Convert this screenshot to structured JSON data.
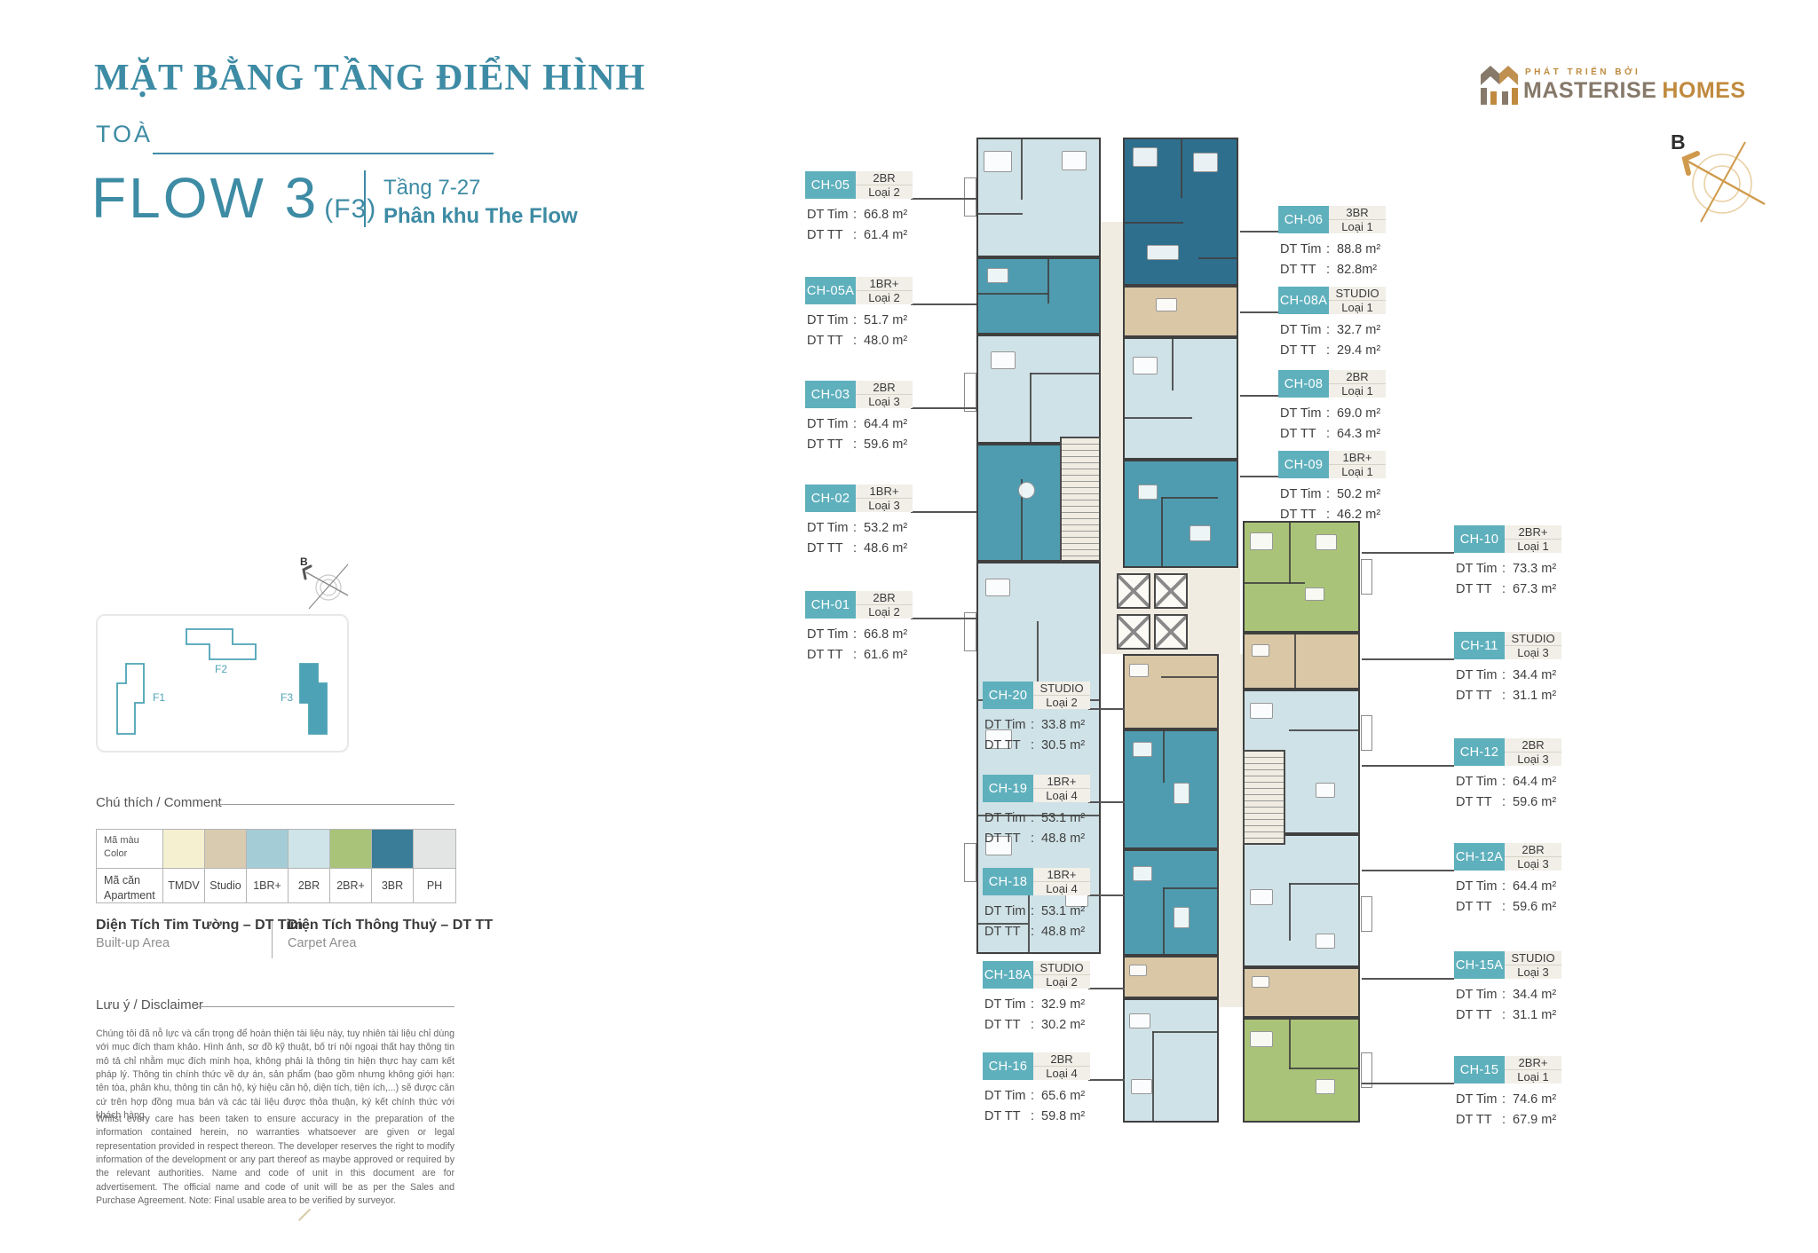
{
  "header": {
    "title": "MẶT BẰNG TẦNG ĐIỂN HÌNH",
    "tower_label": "TOÀ",
    "tower_name": "FLOW 3",
    "tower_code": "(F3)",
    "floor_range": "Tầng 7-27",
    "zone": "Phân khu The Flow"
  },
  "logo": {
    "tagline": "PHÁT TRIỂN BỞI",
    "brand_primary": "MASTERISE",
    "brand_secondary": "HOMES"
  },
  "compass": {
    "north_label": "B"
  },
  "minimap": {
    "buildings": [
      {
        "label": "F1",
        "highlighted": false
      },
      {
        "label": "F2",
        "highlighted": false
      },
      {
        "label": "F3",
        "highlighted": true
      }
    ]
  },
  "legend": {
    "heading": "Chú thích / Comment",
    "rows": {
      "color_vn": "Mã màu",
      "color_en": "Color",
      "apt_vn": "Mã căn",
      "apt_en": "Apartment"
    },
    "types": [
      {
        "code": "TMDV",
        "color": "#f5f0d0"
      },
      {
        "code": "Studio",
        "color": "#d9cbb0"
      },
      {
        "code": "1BR+",
        "color": "#a4ccd7"
      },
      {
        "code": "2BR",
        "color": "#cfe4e8"
      },
      {
        "code": "2BR+",
        "color": "#a9c478"
      },
      {
        "code": "3BR",
        "color": "#3a7d99"
      },
      {
        "code": "PH",
        "color": "#e3e5e5"
      }
    ],
    "area_terms": [
      {
        "vn": "Diện Tích Tim Tường – DT Tim",
        "en": "Built-up Area"
      },
      {
        "vn": "Diện Tích Thông Thuỷ – DT TT",
        "en": "Carpet Area"
      }
    ]
  },
  "disclaimer": {
    "heading": "Lưu ý / Disclaimer",
    "vn": "Chúng tôi đã nỗ lực và cẩn trọng để hoàn thiện tài liệu này, tuy nhiên tài liệu chỉ dùng với mục đích tham khảo. Hình ảnh, sơ đồ kỹ thuật, bố trí nội ngoại thất hay thông tin mô tả chỉ nhằm mục đích minh họa, không phải là thông tin hiện thực hay cam kết pháp lý. Thông tin chính thức về dự án, sản phẩm (bao gồm nhưng không giới hạn: tên tòa, phân khu, thông tin căn hộ, ký hiệu căn hộ, diện tích, tiện ích,...) sẽ được căn cứ trên hợp đồng mua bán và các tài liệu được thỏa thuận, ký kết chính thức với khách hàng.",
    "en": "Whilst every care has been taken to ensure accuracy in the preparation of the information contained herein, no warranties whatsoever are given or legal representation provided in respect thereon. The developer reserves the right to modify information of the development or any part thereof as maybe approved or required by the relevant authorities. Name and code of unit in this document are for advertisement. The official name and code of unit will be as per the Sales and Purchase Agreement. Note: Final usable area to be verified by surveyor."
  },
  "labels": {
    "dt_tim": "DT Tim",
    "dt_tt": "DT TT",
    "colon": ":"
  },
  "units": [
    {
      "id": "CH-05",
      "type": "2BR",
      "variant": "Loại 2",
      "dt_tim": "66.8 m²",
      "dt_tt": "61.4 m²"
    },
    {
      "id": "CH-05A",
      "type": "1BR+",
      "variant": "Loại 2",
      "dt_tim": "51.7 m²",
      "dt_tt": "48.0 m²"
    },
    {
      "id": "CH-03",
      "type": "2BR",
      "variant": "Loại 3",
      "dt_tim": "64.4 m²",
      "dt_tt": "59.6 m²"
    },
    {
      "id": "CH-02",
      "type": "1BR+",
      "variant": "Loại 3",
      "dt_tim": "53.2 m²",
      "dt_tt": "48.6 m²"
    },
    {
      "id": "CH-01",
      "type": "2BR",
      "variant": "Loại 2",
      "dt_tim": "66.8 m²",
      "dt_tt": "61.6 m²"
    },
    {
      "id": "CH-20",
      "type": "STUDIO",
      "variant": "Loại 2",
      "dt_tim": "33.8 m²",
      "dt_tt": "30.5 m²"
    },
    {
      "id": "CH-19",
      "type": "1BR+",
      "variant": "Loại 4",
      "dt_tim": "53.1 m²",
      "dt_tt": "48.8 m²"
    },
    {
      "id": "CH-18",
      "type": "1BR+",
      "variant": "Loại 4",
      "dt_tim": "53.1 m²",
      "dt_tt": "48.8 m²"
    },
    {
      "id": "CH-18A",
      "type": "STUDIO",
      "variant": "Loại 2",
      "dt_tim": "32.9 m²",
      "dt_tt": "30.2 m²"
    },
    {
      "id": "CH-16",
      "type": "2BR",
      "variant": "Loại 4",
      "dt_tim": "65.6 m²",
      "dt_tt": "59.8 m²"
    },
    {
      "id": "CH-06",
      "type": "3BR",
      "variant": "Loại 1",
      "dt_tim": "88.8 m²",
      "dt_tt": "82.8m²"
    },
    {
      "id": "CH-08A",
      "type": "STUDIO",
      "variant": "Loại 1",
      "dt_tim": "32.7 m²",
      "dt_tt": "29.4 m²"
    },
    {
      "id": "CH-08",
      "type": "2BR",
      "variant": "Loại 1",
      "dt_tim": "69.0 m²",
      "dt_tt": "64.3 m²"
    },
    {
      "id": "CH-09",
      "type": "1BR+",
      "variant": "Loại 1",
      "dt_tim": "50.2 m²",
      "dt_tt": "46.2 m²"
    },
    {
      "id": "CH-10",
      "type": "2BR+",
      "variant": "Loại 1",
      "dt_tim": "73.3 m²",
      "dt_tt": "67.3 m²"
    },
    {
      "id": "CH-11",
      "type": "STUDIO",
      "variant": "Loại 3",
      "dt_tim": "34.4 m²",
      "dt_tt": "31.1 m²"
    },
    {
      "id": "CH-12",
      "type": "2BR",
      "variant": "Loại 3",
      "dt_tim": "64.4 m²",
      "dt_tt": "59.6 m²"
    },
    {
      "id": "CH-12A",
      "type": "2BR",
      "variant": "Loại 3",
      "dt_tim": "64.4 m²",
      "dt_tt": "59.6 m²"
    },
    {
      "id": "CH-15A",
      "type": "STUDIO",
      "variant": "Loại 3",
      "dt_tim": "34.4 m²",
      "dt_tt": "31.1 m²"
    },
    {
      "id": "CH-15",
      "type": "2BR+",
      "variant": "Loại 1",
      "dt_tim": "74.6 m²",
      "dt_tt": "67.9 m²"
    }
  ],
  "palette": {
    "accent": "#3d8ba4",
    "labelbox": "#5fb0bd",
    "typebox": "#f1efe8",
    "wall": "#3f3f3f",
    "corridor": "#f0ece1",
    "gold": "#c08a3e",
    "brandgray": "#87796a",
    "textdark": "#3b3b3b",
    "textgray": "#686868",
    "br1": "#4f9cb0",
    "br2": "#cfe2e7",
    "br3": "#2e6f8e",
    "br2p": "#a9c478",
    "studio": "#d9c7a6",
    "tmdv": "#f5f0d0",
    "ph": "#e3e5e5"
  }
}
